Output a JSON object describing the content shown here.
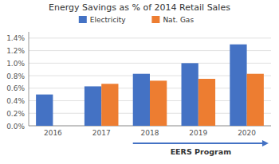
{
  "chart_data": {
    "type": "bar",
    "title": "Energy Savings as % of 2014 Retail Sales",
    "categories": [
      "2016",
      "2017",
      "2018",
      "2019",
      "2020"
    ],
    "series": [
      {
        "name": "Electricity",
        "color": "#4472C4",
        "values": [
          0.005,
          0.0063,
          0.0083,
          0.01,
          0.013
        ]
      },
      {
        "name": "Nat. Gas",
        "color": "#ED7D31",
        "values": [
          null,
          0.0067,
          0.0072,
          0.0075,
          0.0083
        ]
      }
    ],
    "ylim": [
      0,
      0.015
    ],
    "yticks": [
      {
        "value": 0.0,
        "label": "0.0%"
      },
      {
        "value": 0.002,
        "label": "0.2%"
      },
      {
        "value": 0.004,
        "label": "0.4%"
      },
      {
        "value": 0.006,
        "label": "0.6%"
      },
      {
        "value": 0.008,
        "label": "0.8%"
      },
      {
        "value": 0.01,
        "label": "1.0%"
      },
      {
        "value": 0.012,
        "label": "1.2%"
      },
      {
        "value": 0.014,
        "label": "1.4%"
      }
    ],
    "grid": true,
    "legend": "top",
    "annotations": [
      {
        "text": "EERS Program",
        "from": "2018",
        "to": "2020"
      }
    ]
  }
}
